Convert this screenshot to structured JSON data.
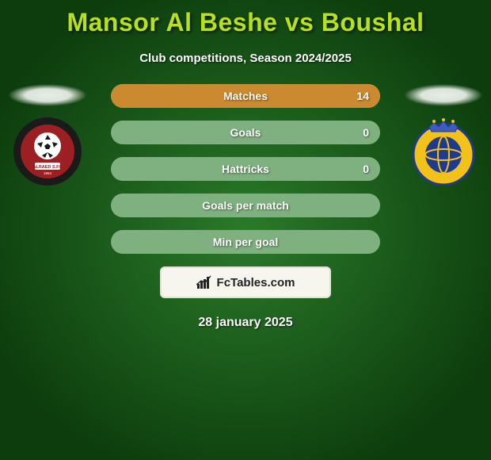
{
  "title": {
    "full": "Mansor Al Beshe vs Boushal",
    "color": "#b9df1f",
    "fontsize": 32
  },
  "subtitle": {
    "text": "Club competitions, Season 2024/2025",
    "fontsize": 15
  },
  "date": {
    "text": "28 january 2025",
    "fontsize": 16
  },
  "branding": {
    "label": "FcTables.com",
    "box_bg": "#f6f6ee",
    "box_border": "#e2e2d5"
  },
  "background": {
    "center": "#2a7a2a",
    "edge": "#0d3d0d"
  },
  "avatars": {
    "left": {
      "club": "Al-Raed",
      "badge_colors": {
        "outer": "#1a1a1a",
        "inner": "#9c1f24",
        "ball": "#ffffff"
      }
    },
    "right": {
      "club": "Al-Nassr",
      "badge_colors": {
        "primary": "#f3c21a",
        "secondary": "#1f3b8f",
        "crown": "#3f5bbd"
      }
    }
  },
  "stats": {
    "pill_bg": "#7fb07f",
    "pill_fill": "#cb8a2f",
    "rows": [
      {
        "label": "Matches",
        "value": "14",
        "fill_pct": 100
      },
      {
        "label": "Goals",
        "value": "0",
        "fill_pct": 0
      },
      {
        "label": "Hattricks",
        "value": "0",
        "fill_pct": 0
      },
      {
        "label": "Goals per match",
        "value": "",
        "fill_pct": 0
      },
      {
        "label": "Min per goal",
        "value": "",
        "fill_pct": 0
      }
    ]
  }
}
